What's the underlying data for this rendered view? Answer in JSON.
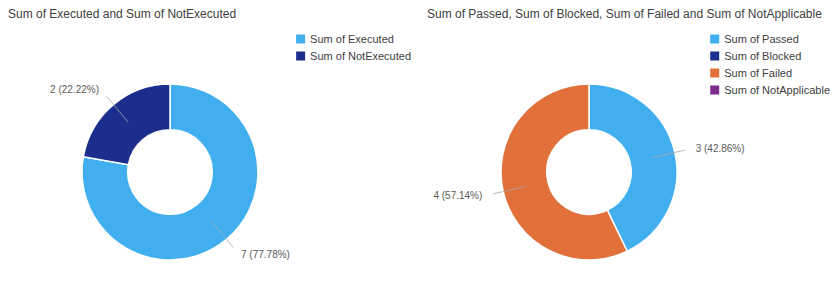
{
  "chart_data": [
    {
      "type": "pie",
      "title": "Sum of Executed and Sum of NotExecuted",
      "categories": [
        "Sum of Executed",
        "Sum of NotExecuted"
      ],
      "values": [
        7,
        2
      ],
      "value_labels": [
        "7 (77.78%)",
        "2 (22.22%)"
      ],
      "colors": [
        "#41AFEF",
        "#1B2E8E"
      ],
      "data_labels": true,
      "legend": "right"
    },
    {
      "type": "pie",
      "title": "Sum of Passed, Sum of Blocked, Sum of Failed and Sum of NotApplicable",
      "categories": [
        "Sum of Passed",
        "Sum of Blocked",
        "Sum of Failed",
        "Sum of NotApplicable"
      ],
      "values": [
        3,
        null,
        4,
        null
      ],
      "value_labels": [
        "3 (42.86%)",
        null,
        "4 (57.14%)",
        null
      ],
      "colors": [
        "#41AFEF",
        "#1B2E8E",
        "#E2703A",
        "#7B2D8B"
      ],
      "data_labels": true,
      "legend": "right"
    }
  ]
}
